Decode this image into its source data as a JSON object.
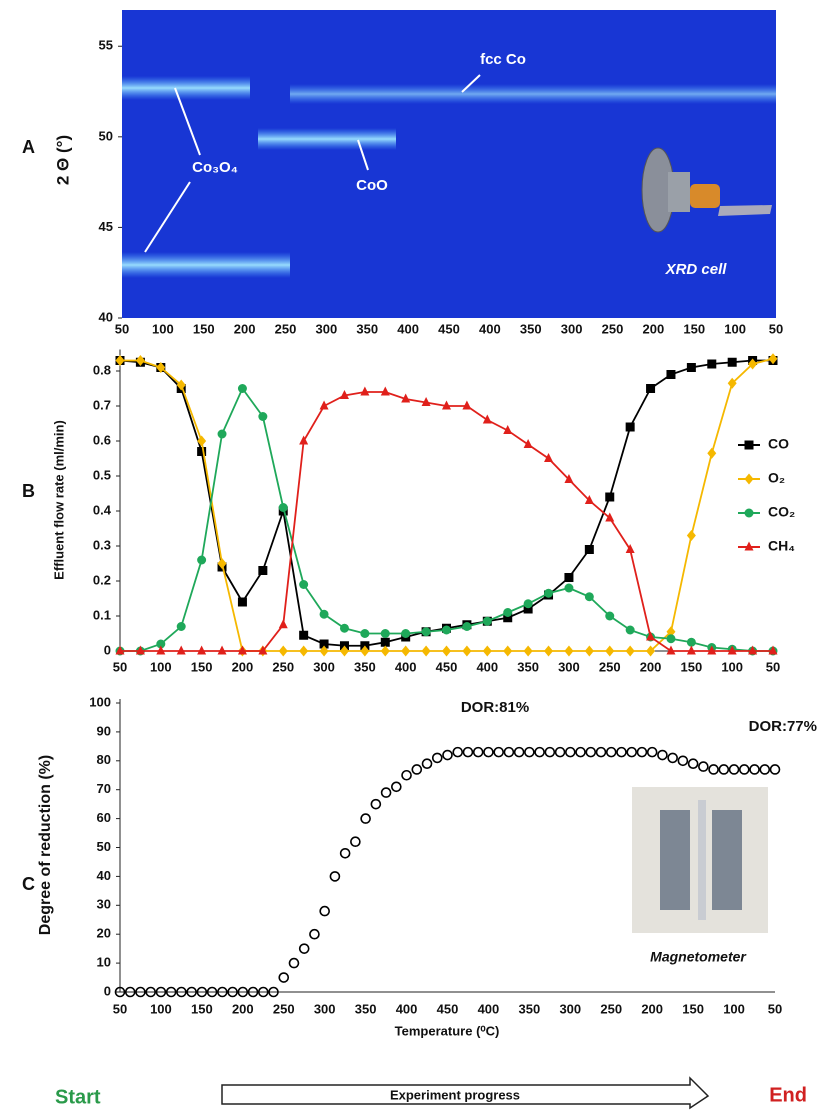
{
  "chart_data": [
    {
      "type": "heatmap",
      "panel": "A",
      "ylabel": "2 Θ (°)",
      "categories": [
        "50",
        "100",
        "150",
        "200",
        "250",
        "300",
        "350",
        "400",
        "450",
        "400",
        "350",
        "300",
        "250",
        "200",
        "150",
        "100",
        "50"
      ],
      "ylim": [
        40,
        57
      ],
      "yticks": [
        40,
        45,
        50,
        55
      ],
      "annotations": [
        "fcc Co",
        "Co₃O₄",
        "CoO",
        "XRD cell"
      ]
    },
    {
      "type": "line",
      "panel": "B",
      "ylabel": "Effluent flow rate (ml/min)",
      "categories": [
        "50",
        null,
        "100",
        null,
        "150",
        null,
        "200",
        null,
        "250",
        null,
        "300",
        null,
        "350",
        null,
        "400",
        null,
        "450",
        null,
        "400",
        null,
        "350",
        null,
        "300",
        null,
        "250",
        null,
        "200",
        null,
        "150",
        null,
        "100",
        null,
        "50"
      ],
      "ylim": [
        0,
        0.85
      ],
      "yticks": [
        0,
        0.1,
        0.2,
        0.3,
        0.4,
        0.5,
        0.6,
        0.7,
        0.8
      ],
      "legend": "right",
      "series": [
        {
          "name": "CO",
          "color": "#000000",
          "marker": "square",
          "values": [
            0.83,
            0.825,
            0.81,
            0.75,
            0.57,
            0.24,
            0.14,
            0.23,
            0.4,
            0.045,
            0.02,
            0.015,
            0.015,
            0.025,
            0.04,
            0.055,
            0.065,
            0.075,
            0.085,
            0.095,
            0.12,
            0.16,
            0.21,
            0.29,
            0.44,
            0.64,
            0.75,
            0.79,
            0.81,
            0.82,
            0.825,
            0.83,
            0.83
          ]
        },
        {
          "name": "O₂",
          "color": "#f5b800",
          "marker": "diamond",
          "values": [
            0.83,
            0.83,
            0.81,
            0.76,
            0.6,
            0.25,
            0,
            0,
            0,
            0,
            0,
            0,
            0,
            0,
            0,
            0,
            0,
            0,
            0,
            0,
            0,
            0,
            0,
            0,
            0,
            0,
            0,
            0.055,
            0.33,
            0.565,
            0.765,
            0.82,
            0.835
          ]
        },
        {
          "name": "CO₂",
          "color": "#1fa85a",
          "marker": "circle",
          "values": [
            0,
            0,
            0.02,
            0.07,
            0.26,
            0.62,
            0.75,
            0.67,
            0.41,
            0.19,
            0.105,
            0.065,
            0.05,
            0.05,
            0.05,
            0.055,
            0.06,
            0.07,
            0.085,
            0.11,
            0.135,
            0.165,
            0.18,
            0.155,
            0.1,
            0.06,
            0.04,
            0.035,
            0.025,
            0.01,
            0.005,
            0,
            0
          ]
        },
        {
          "name": "CH₄",
          "color": "#e0201b",
          "marker": "triangle",
          "values": [
            0,
            0,
            0,
            0,
            0,
            0,
            0,
            0,
            0.075,
            0.6,
            0.7,
            0.73,
            0.74,
            0.74,
            0.72,
            0.71,
            0.7,
            0.7,
            0.66,
            0.63,
            0.59,
            0.55,
            0.49,
            0.43,
            0.38,
            0.29,
            0.04,
            0,
            0,
            0,
            0,
            0,
            0
          ]
        }
      ]
    },
    {
      "type": "scatter",
      "panel": "C",
      "ylabel": "Degree of reduction (%)",
      "xlabel": "Temperature (⁰C)",
      "categories": [
        "50",
        null,
        null,
        null,
        "100",
        null,
        null,
        null,
        "150",
        null,
        null,
        null,
        "200",
        null,
        null,
        null,
        "250",
        null,
        null,
        null,
        "300",
        null,
        null,
        null,
        "350",
        null,
        null,
        null,
        "400",
        null,
        null,
        null,
        "450",
        null,
        null,
        null,
        "400",
        null,
        null,
        null,
        "350",
        null,
        null,
        null,
        "300",
        null,
        null,
        null,
        "250",
        null,
        null,
        null,
        "200",
        null,
        null,
        null,
        "150",
        null,
        null,
        null,
        "100",
        null,
        null,
        null,
        "50"
      ],
      "ylim": [
        0,
        100
      ],
      "yticks": [
        0,
        10,
        20,
        30,
        40,
        50,
        60,
        70,
        80,
        90,
        100
      ],
      "color": "#000000",
      "values": [
        0,
        0,
        0,
        0,
        0,
        0,
        0,
        0,
        0,
        0,
        0,
        0,
        0,
        0,
        0,
        0,
        5,
        10,
        15,
        20,
        28,
        40,
        48,
        52,
        60,
        65,
        69,
        71,
        75,
        77,
        79,
        81,
        82,
        83,
        83,
        83,
        83,
        83,
        83,
        83,
        83,
        83,
        83,
        83,
        83,
        83,
        83,
        83,
        83,
        83,
        83,
        83,
        83,
        82,
        81,
        80,
        79,
        78,
        77,
        77,
        77,
        77,
        77,
        77,
        77
      ],
      "annotations": [
        "DOR:81%",
        "DOR:77%",
        "Magnetometer"
      ]
    }
  ],
  "footer": {
    "start": "Start",
    "progress": "Experiment progress",
    "end": "End"
  }
}
